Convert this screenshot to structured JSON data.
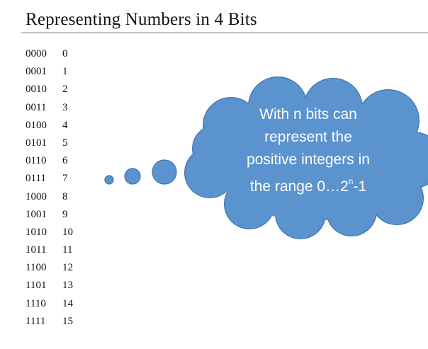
{
  "slide": {
    "title": "Representing Numbers in 4 Bits"
  },
  "table": {
    "rows": [
      {
        "bits": "0000",
        "value": "0"
      },
      {
        "bits": "0001",
        "value": "1"
      },
      {
        "bits": "0010",
        "value": "2"
      },
      {
        "bits": "0011",
        "value": "3"
      },
      {
        "bits": "0100",
        "value": "4"
      },
      {
        "bits": "0101",
        "value": "5"
      },
      {
        "bits": "0110",
        "value": "6"
      },
      {
        "bits": "0111",
        "value": "7"
      },
      {
        "bits": "1000",
        "value": "8"
      },
      {
        "bits": "1001",
        "value": "9"
      },
      {
        "bits": "1010",
        "value": "10"
      },
      {
        "bits": "1011",
        "value": "11"
      },
      {
        "bits": "1100",
        "value": "12"
      },
      {
        "bits": "1101",
        "value": "13"
      },
      {
        "bits": "1110",
        "value": "14"
      },
      {
        "bits": "1111",
        "value": "15"
      }
    ]
  },
  "callout": {
    "line1": "With n bits can",
    "line2": "represent the",
    "line3": "positive integers in",
    "line4_prefix": "the range 0…2",
    "line4_sup": "n",
    "line4_suffix": "-1",
    "fill_color": "#5b93cf",
    "stroke_color": "#3f75ad",
    "text_color": "#ffffff"
  }
}
